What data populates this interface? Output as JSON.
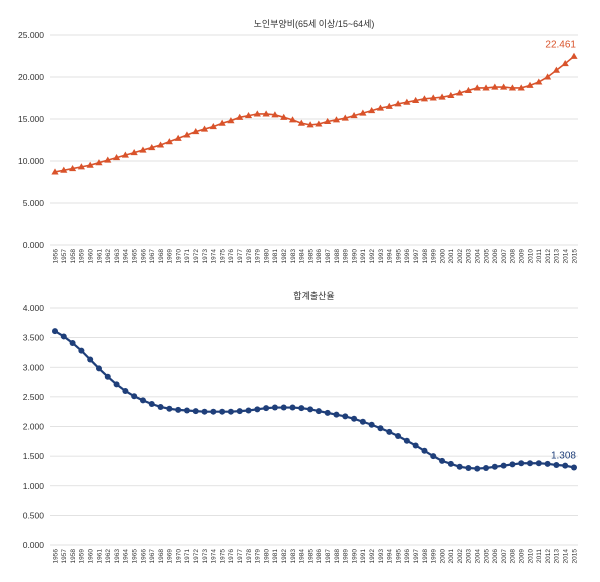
{
  "chart_data": [
    {
      "type": "line",
      "title": "노인부양비(65세 이상/15~64세)",
      "ylim": [
        0,
        25
      ],
      "yticks": [
        "0.000",
        "5.000",
        "10.000",
        "15.000",
        "20.000",
        "25.000"
      ],
      "categories": [
        "1956",
        "1957",
        "1958",
        "1959",
        "1960",
        "1961",
        "1962",
        "1963",
        "1964",
        "1965",
        "1966",
        "1967",
        "1968",
        "1969",
        "1970",
        "1971",
        "1972",
        "1973",
        "1974",
        "1975",
        "1976",
        "1977",
        "1978",
        "1979",
        "1980",
        "1981",
        "1982",
        "1983",
        "1984",
        "1985",
        "1986",
        "1987",
        "1988",
        "1989",
        "1990",
        "1991",
        "1992",
        "1993",
        "1994",
        "1995",
        "1996",
        "1997",
        "1998",
        "1999",
        "2000",
        "2001",
        "2002",
        "2003",
        "2004",
        "2005",
        "2006",
        "2007",
        "2008",
        "2009",
        "2010",
        "2011",
        "2012",
        "2013",
        "2014",
        "2015"
      ],
      "series": [
        {
          "name": "노인부양비",
          "color": "#d9532b",
          "marker": "triangle",
          "values": [
            8.7,
            8.9,
            9.1,
            9.3,
            9.5,
            9.8,
            10.1,
            10.4,
            10.7,
            11.0,
            11.3,
            11.6,
            11.9,
            12.3,
            12.7,
            13.1,
            13.5,
            13.8,
            14.1,
            14.5,
            14.8,
            15.2,
            15.4,
            15.6,
            15.6,
            15.5,
            15.2,
            14.9,
            14.5,
            14.3,
            14.4,
            14.7,
            14.9,
            15.1,
            15.4,
            15.7,
            16.0,
            16.3,
            16.5,
            16.8,
            17.0,
            17.2,
            17.4,
            17.5,
            17.6,
            17.8,
            18.1,
            18.4,
            18.7,
            18.7,
            18.8,
            18.8,
            18.7,
            18.7,
            19.0,
            19.4,
            20.0,
            20.8,
            21.6,
            22.461
          ]
        }
      ],
      "last_label": "22.461"
    },
    {
      "type": "line",
      "title": "합계출산율",
      "ylim": [
        0,
        4
      ],
      "yticks": [
        "0.000",
        "0.500",
        "1.000",
        "1.500",
        "2.000",
        "2.500",
        "3.000",
        "3.500",
        "4.000"
      ],
      "categories": [
        "1956",
        "1957",
        "1958",
        "1959",
        "1960",
        "1961",
        "1962",
        "1963",
        "1964",
        "1965",
        "1966",
        "1967",
        "1968",
        "1969",
        "1970",
        "1971",
        "1972",
        "1973",
        "1974",
        "1975",
        "1976",
        "1977",
        "1978",
        "1979",
        "1980",
        "1981",
        "1982",
        "1983",
        "1984",
        "1985",
        "1986",
        "1987",
        "1988",
        "1989",
        "1990",
        "1991",
        "1992",
        "1993",
        "1994",
        "1995",
        "1996",
        "1997",
        "1998",
        "1999",
        "2000",
        "2001",
        "2002",
        "2003",
        "2004",
        "2005",
        "2006",
        "2007",
        "2008",
        "2009",
        "2010",
        "2011",
        "2012",
        "2013",
        "2014",
        "2015"
      ],
      "series": [
        {
          "name": "합계출산율",
          "color": "#1f3f7a",
          "marker": "circle",
          "values": [
            3.61,
            3.52,
            3.41,
            3.28,
            3.13,
            2.98,
            2.84,
            2.71,
            2.6,
            2.51,
            2.44,
            2.38,
            2.33,
            2.3,
            2.28,
            2.27,
            2.26,
            2.25,
            2.25,
            2.25,
            2.25,
            2.26,
            2.27,
            2.29,
            2.31,
            2.32,
            2.32,
            2.32,
            2.31,
            2.29,
            2.26,
            2.23,
            2.2,
            2.17,
            2.13,
            2.08,
            2.03,
            1.97,
            1.91,
            1.84,
            1.76,
            1.68,
            1.59,
            1.5,
            1.42,
            1.37,
            1.32,
            1.3,
            1.29,
            1.3,
            1.32,
            1.34,
            1.36,
            1.38,
            1.38,
            1.38,
            1.37,
            1.35,
            1.34,
            1.308
          ]
        }
      ],
      "last_label": "1.308"
    }
  ]
}
